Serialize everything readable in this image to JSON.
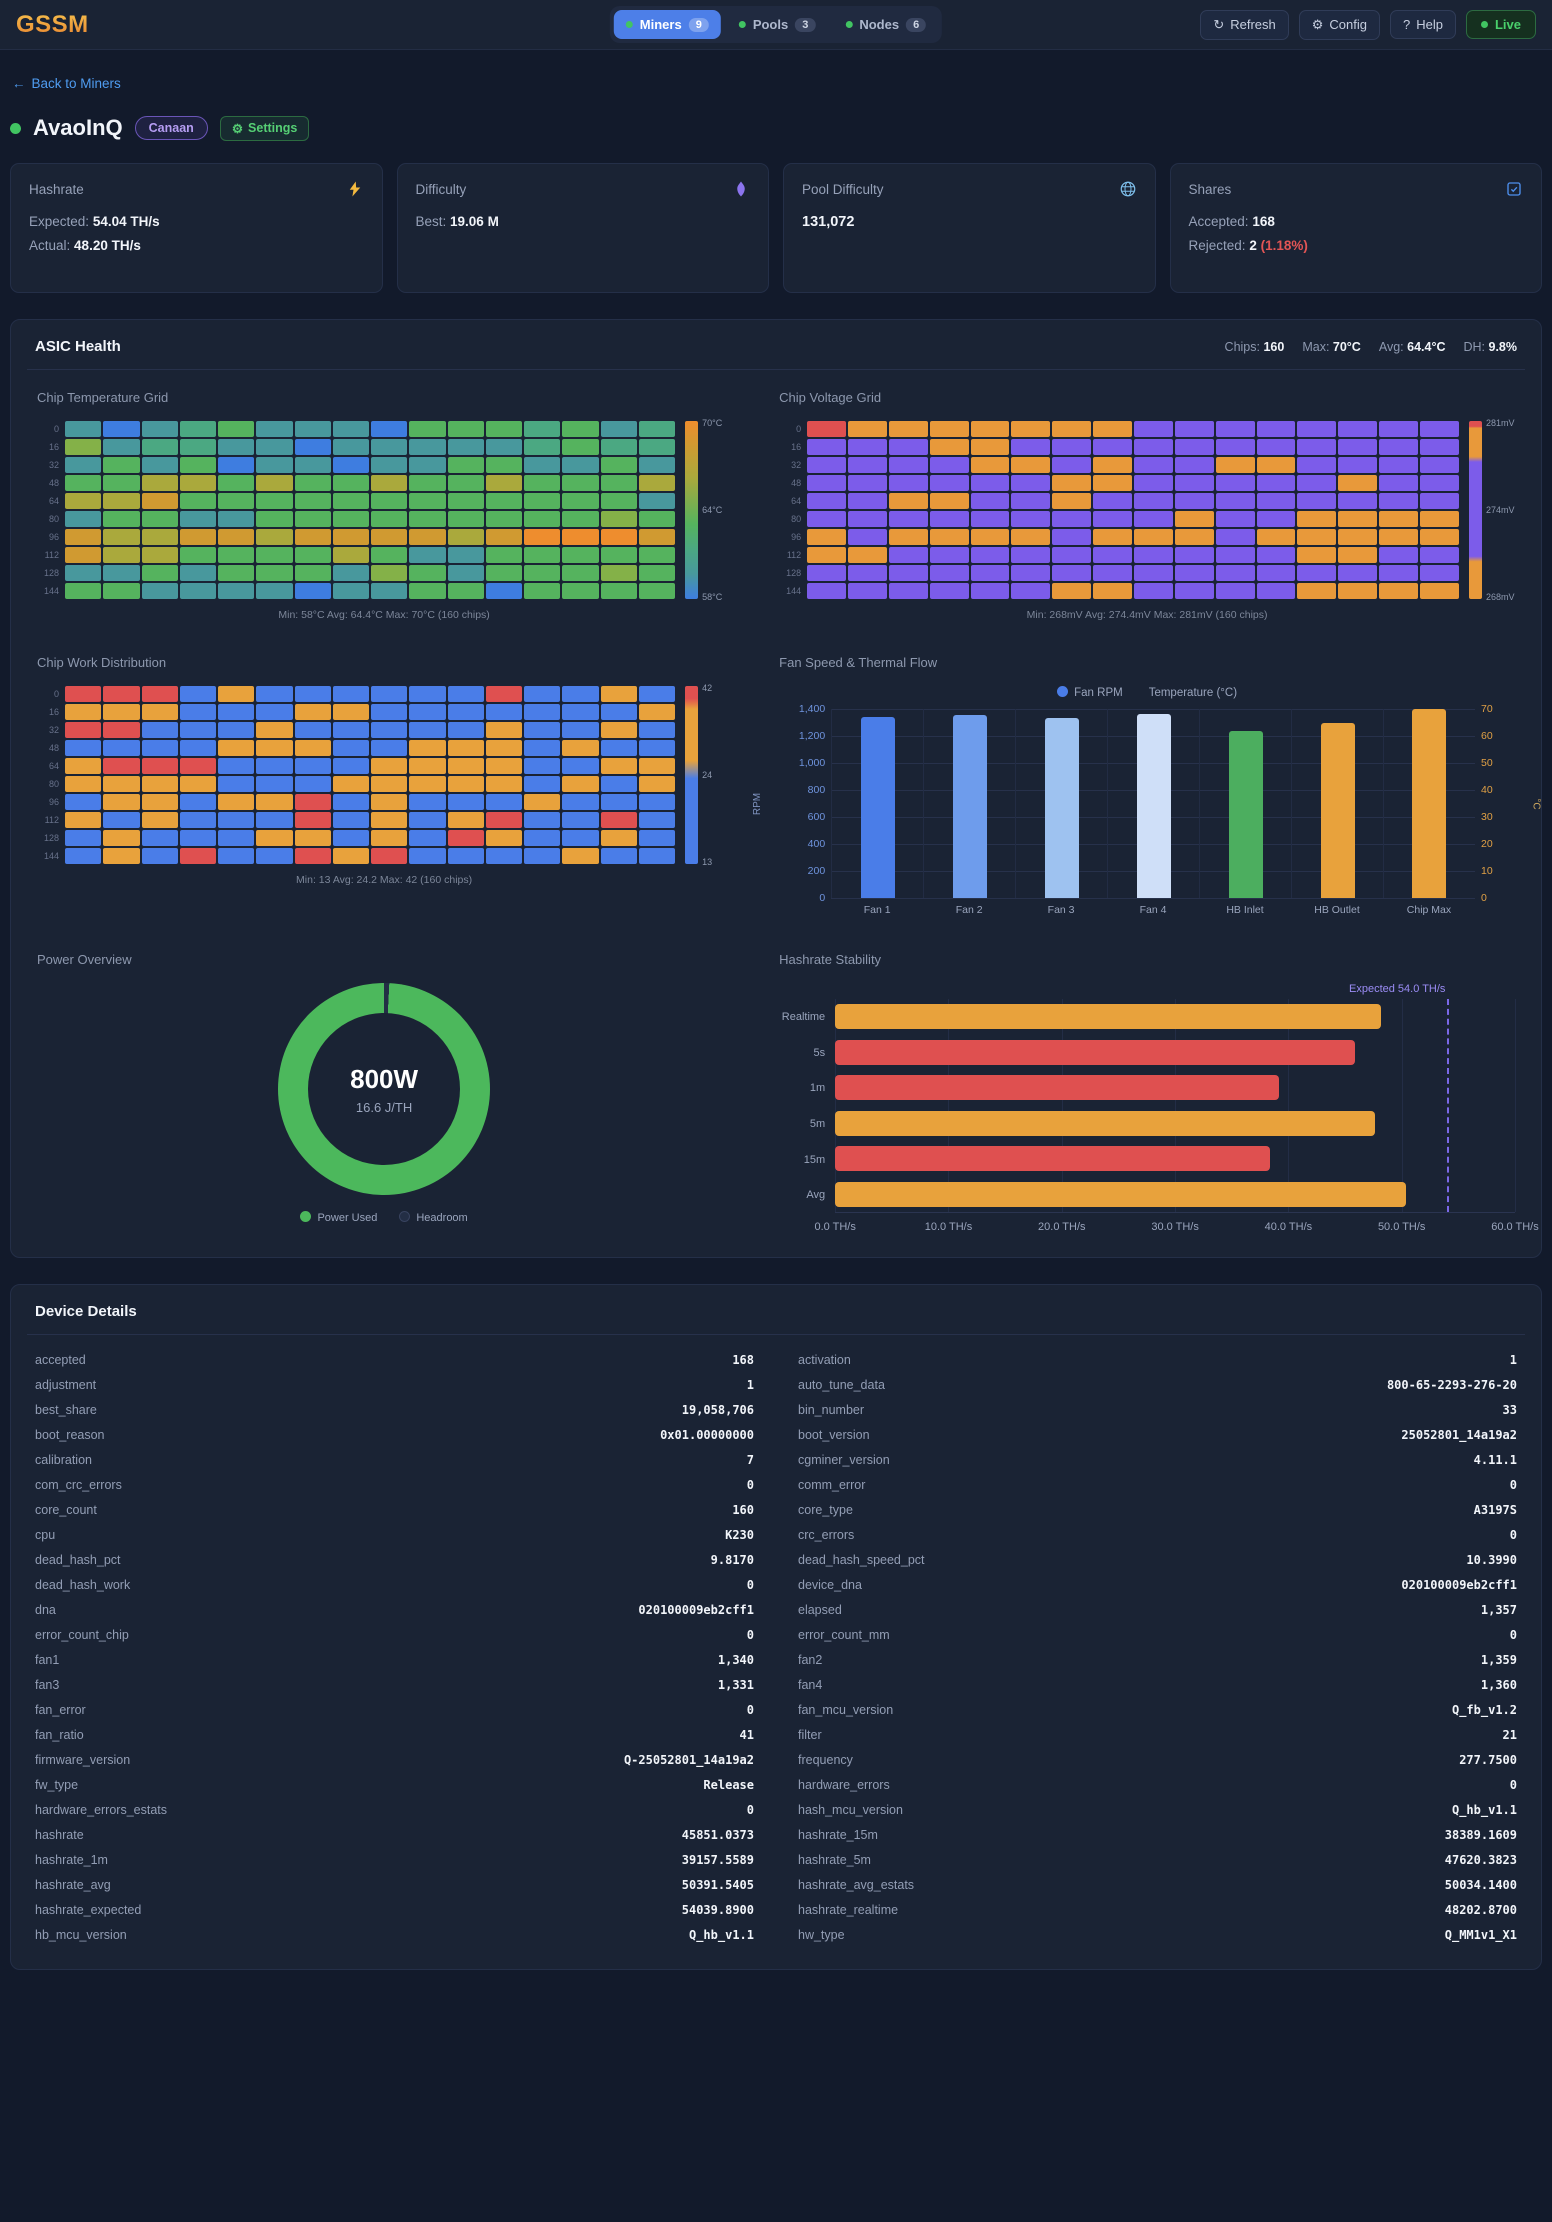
{
  "header": {
    "logo": "GSSM",
    "tabs": [
      {
        "label": "Miners",
        "count": "9"
      },
      {
        "label": "Pools",
        "count": "3"
      },
      {
        "label": "Nodes",
        "count": "6"
      }
    ],
    "actions": [
      {
        "icon": "↻",
        "label": "Refresh"
      },
      {
        "icon": "⚙",
        "label": "Config"
      },
      {
        "icon": "?",
        "label": "Help"
      }
    ],
    "live_label": "Live"
  },
  "back": {
    "arrow": "←",
    "label": "Back to Miners"
  },
  "miner": {
    "name": "AvaoInQ",
    "vendor_badge": "Canaan",
    "settings_icon": "⚙",
    "settings_label": "Settings"
  },
  "stat_cards": [
    {
      "title": "Hashrate",
      "rows": [
        {
          "label": "Expected:",
          "value": "54.04 TH/s"
        },
        {
          "label": "Actual:",
          "value": "48.20 TH/s"
        }
      ]
    },
    {
      "title": "Difficulty",
      "rows": [
        {
          "label": "Best:",
          "value": "19.06 M"
        }
      ]
    },
    {
      "title": "Pool Difficulty",
      "value": "131,072"
    },
    {
      "title": "Shares",
      "rows": [
        {
          "label": "Accepted:",
          "value": "168"
        },
        {
          "label": "Rejected:",
          "value": "2",
          "suffix": "(1.18%)"
        }
      ]
    }
  ],
  "asic_health": {
    "title": "ASIC Health",
    "stats": [
      {
        "label": "Chips:",
        "value": "160"
      },
      {
        "label": "Max:",
        "value": "70°C"
      },
      {
        "label": "Avg:",
        "value": "64.4°C"
      },
      {
        "label": "DH:",
        "value": "9.8%"
      }
    ]
  },
  "device_details_title": "Device Details",
  "chart_data": [
    {
      "id": "temp-grid",
      "type": "heatmap",
      "title": "Chip Temperature Grid",
      "caption": "Min: 58°C  Avg: 64.4°C  Max: 70°C  (160 chips)",
      "scale_labels": {
        "top": "70°C",
        "mid": "64°C",
        "bot": "58°C"
      },
      "row_labels": [
        "0",
        "16",
        "32",
        "48",
        "64",
        "80",
        "96",
        "112",
        "128",
        "144"
      ],
      "thresholds": [
        {
          "max": 59,
          "color": "#3e7de0"
        },
        {
          "max": 62,
          "color": "#48989d"
        },
        {
          "max": 63.4,
          "color": "#4ba882"
        },
        {
          "max": 65,
          "color": "#55b35e"
        },
        {
          "max": 66.4,
          "color": "#84b148"
        },
        {
          "max": 67.6,
          "color": "#aaa93c"
        },
        {
          "max": 69.2,
          "color": "#d09a31"
        },
        {
          "max": 999,
          "color": "#ee8d2e"
        }
      ],
      "values": [
        [
          61,
          58.5,
          61,
          63,
          64,
          61,
          61,
          61,
          58.5,
          64,
          64,
          64,
          63,
          64,
          61,
          63
        ],
        [
          65.8,
          61,
          63,
          63,
          61,
          61,
          58.5,
          61,
          61,
          61,
          61,
          61,
          63,
          64,
          63,
          63
        ],
        [
          61,
          64,
          61,
          64,
          58.5,
          61,
          61,
          58.5,
          61,
          61,
          64,
          64,
          61,
          61,
          64,
          61
        ],
        [
          64,
          64,
          67,
          67,
          64,
          67,
          64,
          64,
          67,
          64,
          64,
          67,
          64,
          64,
          64,
          67
        ],
        [
          67,
          67,
          68.5,
          64,
          64,
          64,
          64,
          64,
          64,
          64,
          64,
          64,
          64,
          64,
          64,
          61
        ],
        [
          61,
          64,
          64,
          61,
          61,
          64,
          64,
          64,
          64,
          64,
          64,
          64,
          64,
          64,
          65.8,
          64
        ],
        [
          68.5,
          67,
          67,
          68.5,
          68.5,
          67,
          68.5,
          68.5,
          68.5,
          68.5,
          67,
          68.5,
          69.8,
          69.8,
          69.8,
          68.5
        ],
        [
          68.5,
          67,
          67,
          64,
          64,
          64,
          64,
          67,
          64,
          61,
          61,
          64,
          64,
          64,
          64,
          64
        ],
        [
          61,
          61,
          64,
          61,
          64,
          64,
          64,
          61,
          65.8,
          64,
          61,
          64,
          64,
          64,
          65.8,
          64
        ],
        [
          64,
          64,
          61,
          61,
          61,
          61,
          58.5,
          61,
          61,
          64,
          64,
          58.5,
          64,
          64,
          64,
          64
        ]
      ]
    },
    {
      "id": "volt-grid",
      "type": "heatmap",
      "title": "Chip Voltage Grid",
      "caption": "Min: 268mV  Avg: 274.4mV  Max: 281mV  (160 chips)",
      "scale_labels": {
        "top": "281mV",
        "mid": "274mV",
        "bot": "268mV"
      },
      "row_labels": [
        "0",
        "16",
        "32",
        "48",
        "64",
        "80",
        "96",
        "112",
        "128",
        "144"
      ],
      "thresholds": [
        {
          "max": 271,
          "color": "#e8993a"
        },
        {
          "max": 279,
          "color": "#7c5cea"
        },
        {
          "max": 999,
          "color": "#df5050"
        }
      ],
      "values": [
        [
          281,
          269,
          269,
          269,
          269,
          269,
          269,
          269,
          274,
          274,
          274,
          274,
          274,
          274,
          274,
          274
        ],
        [
          274,
          274,
          274,
          269,
          269,
          274,
          274,
          274,
          274,
          274,
          274,
          274,
          274,
          274,
          274,
          274
        ],
        [
          274,
          274,
          274,
          274,
          269,
          269,
          274,
          269,
          274,
          274,
          269,
          269,
          274,
          274,
          274,
          274
        ],
        [
          274,
          274,
          274,
          274,
          274,
          274,
          269,
          269,
          274,
          274,
          274,
          274,
          274,
          269,
          274,
          274
        ],
        [
          274,
          274,
          269,
          269,
          274,
          274,
          269,
          274,
          274,
          274,
          274,
          274,
          274,
          274,
          274,
          274
        ],
        [
          274,
          274,
          274,
          274,
          274,
          274,
          274,
          274,
          274,
          269,
          274,
          274,
          269,
          269,
          269,
          269
        ],
        [
          269,
          274,
          269,
          269,
          269,
          269,
          274,
          269,
          269,
          269,
          274,
          269,
          269,
          269,
          269,
          269
        ],
        [
          269,
          269,
          274,
          274,
          274,
          274,
          274,
          274,
          274,
          274,
          274,
          274,
          269,
          269,
          274,
          274
        ],
        [
          274,
          274,
          274,
          274,
          274,
          274,
          274,
          274,
          274,
          274,
          274,
          274,
          274,
          274,
          274,
          274
        ],
        [
          274,
          274,
          274,
          274,
          274,
          274,
          269,
          269,
          274,
          274,
          274,
          274,
          269,
          269,
          269,
          269
        ]
      ]
    },
    {
      "id": "work-grid",
      "type": "heatmap",
      "title": "Chip Work Distribution",
      "caption": "Min: 13  Avg: 24.2  Max: 42  (160 chips)",
      "scale_labels": {
        "top": "42",
        "mid": "24",
        "bot": "13"
      },
      "row_labels": [
        "0",
        "16",
        "32",
        "48",
        "64",
        "80",
        "96",
        "112",
        "128",
        "144"
      ],
      "thresholds": [
        {
          "max": 22,
          "color": "#4a7de8"
        },
        {
          "max": 36,
          "color": "#e8a23c"
        },
        {
          "max": 999,
          "color": "#df5050"
        }
      ],
      "values": [
        [
          40,
          40,
          40,
          18,
          31,
          18,
          18,
          18,
          18,
          18,
          18,
          40,
          18,
          18,
          31,
          18
        ],
        [
          31,
          31,
          31,
          18,
          18,
          18,
          31,
          31,
          18,
          18,
          18,
          18,
          18,
          18,
          18,
          31
        ],
        [
          40,
          40,
          18,
          18,
          18,
          31,
          18,
          18,
          18,
          18,
          18,
          31,
          18,
          18,
          31,
          18
        ],
        [
          18,
          18,
          18,
          18,
          31,
          31,
          31,
          18,
          18,
          31,
          31,
          31,
          18,
          31,
          18,
          18
        ],
        [
          31,
          40,
          40,
          40,
          18,
          18,
          18,
          18,
          31,
          31,
          31,
          31,
          18,
          18,
          31,
          31
        ],
        [
          31,
          31,
          31,
          31,
          18,
          18,
          18,
          31,
          31,
          31,
          31,
          31,
          18,
          31,
          18,
          31
        ],
        [
          18,
          31,
          31,
          18,
          31,
          31,
          40,
          18,
          31,
          18,
          18,
          18,
          31,
          18,
          18,
          18
        ],
        [
          31,
          18,
          31,
          18,
          18,
          18,
          40,
          18,
          31,
          18,
          31,
          40,
          18,
          18,
          40,
          18
        ],
        [
          18,
          31,
          18,
          18,
          18,
          31,
          31,
          18,
          31,
          18,
          40,
          31,
          18,
          18,
          31,
          18
        ],
        [
          18,
          31,
          18,
          40,
          18,
          18,
          40,
          31,
          40,
          18,
          18,
          18,
          18,
          31,
          18,
          18
        ]
      ]
    },
    {
      "id": "fan-chart",
      "type": "bar",
      "title": "Fan Speed & Thermal Flow",
      "legend": [
        {
          "label": "Fan RPM",
          "color": "#4a7de8"
        },
        {
          "label": "Temperature (°C)",
          "color": ""
        }
      ],
      "categories": [
        "Fan 1",
        "Fan 2",
        "Fan 3",
        "Fan 4",
        "HB Inlet",
        "HB Outlet",
        "Chip Max"
      ],
      "rpm": [
        1340,
        1359,
        1331,
        1360,
        null,
        null,
        null
      ],
      "temp": [
        null,
        null,
        null,
        null,
        62,
        65,
        70
      ],
      "colors": [
        "#4a7de8",
        "#6e9cec",
        "#9ec2f0",
        "#cfdff8",
        "#4cae5f",
        "#e8a23c",
        "#e8a23c"
      ],
      "rpm_max": 1400,
      "temp_max": 70,
      "ylabel_left": "RPM",
      "ylabel_right": "°C",
      "left_ticks": [
        "1,400",
        "1,200",
        "1,000",
        "800",
        "600",
        "400",
        "200",
        "0"
      ],
      "right_ticks": [
        "70",
        "60",
        "50",
        "40",
        "30",
        "20",
        "10",
        "0"
      ]
    },
    {
      "id": "power-donut",
      "type": "pie",
      "title": "Power Overview",
      "center_value": "800W",
      "center_sub": "16.6 J/TH",
      "used_pct": 99.2,
      "legend": [
        {
          "label": "Power Used",
          "color": "#4cb85c"
        },
        {
          "label": "Headroom",
          "color": "#232e45"
        }
      ]
    },
    {
      "id": "hs-chart",
      "type": "bar",
      "title": "Hashrate Stability",
      "categories": [
        "Realtime",
        "5s",
        "1m",
        "5m",
        "15m",
        "Avg"
      ],
      "values": [
        48.2,
        45.9,
        39.2,
        47.6,
        38.4,
        50.4
      ],
      "colors": [
        "#e8a23c",
        "#df5050",
        "#df5050",
        "#e8a23c",
        "#df5050",
        "#e8a23c"
      ],
      "xmax": 60,
      "expected": 54.0,
      "expected_label": "Expected 54.0 TH/s",
      "x_ticks": [
        "0.0 TH/s",
        "10.0 TH/s",
        "20.0 TH/s",
        "30.0 TH/s",
        "40.0 TH/s",
        "50.0 TH/s",
        "60.0 TH/s"
      ]
    }
  ],
  "device_details": {
    "left": [
      {
        "k": "accepted",
        "v": "168"
      },
      {
        "k": "adjustment",
        "v": "1"
      },
      {
        "k": "best_share",
        "v": "19,058,706"
      },
      {
        "k": "boot_reason",
        "v": "0x01.00000000"
      },
      {
        "k": "calibration",
        "v": "7"
      },
      {
        "k": "com_crc_errors",
        "v": "0"
      },
      {
        "k": "core_count",
        "v": "160"
      },
      {
        "k": "cpu",
        "v": "K230"
      },
      {
        "k": "dead_hash_pct",
        "v": "9.8170"
      },
      {
        "k": "dead_hash_work",
        "v": "0"
      },
      {
        "k": "dna",
        "v": "020100009eb2cff1"
      },
      {
        "k": "error_count_chip",
        "v": "0"
      },
      {
        "k": "fan1",
        "v": "1,340"
      },
      {
        "k": "fan3",
        "v": "1,331"
      },
      {
        "k": "fan_error",
        "v": "0"
      },
      {
        "k": "fan_ratio",
        "v": "41"
      },
      {
        "k": "firmware_version",
        "v": "Q-25052801_14a19a2"
      },
      {
        "k": "fw_type",
        "v": "Release"
      },
      {
        "k": "hardware_errors_estats",
        "v": "0"
      },
      {
        "k": "hashrate",
        "v": "45851.0373"
      },
      {
        "k": "hashrate_1m",
        "v": "39157.5589"
      },
      {
        "k": "hashrate_avg",
        "v": "50391.5405"
      },
      {
        "k": "hashrate_expected",
        "v": "54039.8900"
      },
      {
        "k": "hb_mcu_version",
        "v": "Q_hb_v1.1"
      }
    ],
    "right": [
      {
        "k": "activation",
        "v": "1"
      },
      {
        "k": "auto_tune_data",
        "v": "800-65-2293-276-20"
      },
      {
        "k": "bin_number",
        "v": "33"
      },
      {
        "k": "boot_version",
        "v": "25052801_14a19a2"
      },
      {
        "k": "cgminer_version",
        "v": "4.11.1"
      },
      {
        "k": "comm_error",
        "v": "0"
      },
      {
        "k": "core_type",
        "v": "A3197S"
      },
      {
        "k": "crc_errors",
        "v": "0"
      },
      {
        "k": "dead_hash_speed_pct",
        "v": "10.3990"
      },
      {
        "k": "device_dna",
        "v": "020100009eb2cff1"
      },
      {
        "k": "elapsed",
        "v": "1,357"
      },
      {
        "k": "error_count_mm",
        "v": "0"
      },
      {
        "k": "fan2",
        "v": "1,359"
      },
      {
        "k": "fan4",
        "v": "1,360"
      },
      {
        "k": "fan_mcu_version",
        "v": "Q_fb_v1.2"
      },
      {
        "k": "filter",
        "v": "21"
      },
      {
        "k": "frequency",
        "v": "277.7500"
      },
      {
        "k": "hardware_errors",
        "v": "0"
      },
      {
        "k": "hash_mcu_version",
        "v": "Q_hb_v1.1"
      },
      {
        "k": "hashrate_15m",
        "v": "38389.1609"
      },
      {
        "k": "hashrate_5m",
        "v": "47620.3823"
      },
      {
        "k": "hashrate_avg_estats",
        "v": "50034.1400"
      },
      {
        "k": "hashrate_realtime",
        "v": "48202.8700"
      },
      {
        "k": "hw_type",
        "v": "Q_MM1v1_X1"
      }
    ]
  }
}
